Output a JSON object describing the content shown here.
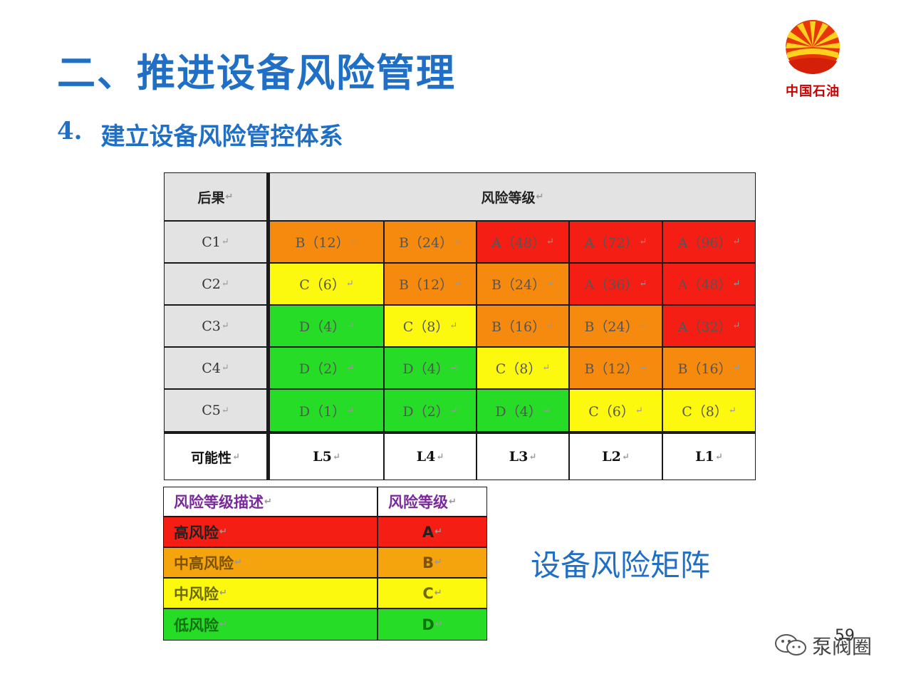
{
  "slide": {
    "title": "二、推进设备风险管理",
    "subtitle_number": "4.",
    "subtitle_text": "建立设备风险管控体系",
    "logo_text": "中国石油",
    "caption": "设备风险矩阵",
    "page_number": "59",
    "watermark": "泵阀圈"
  },
  "matrix": {
    "header_consequence": "后果",
    "header_risk": "风险等级",
    "footer_label": "可能性",
    "likelihood_levels": [
      "L5",
      "L4",
      "L3",
      "L2",
      "L1"
    ],
    "rows": [
      {
        "label": "C1",
        "cells": [
          {
            "text": "B（12）",
            "level": "B"
          },
          {
            "text": "B（24）",
            "level": "B"
          },
          {
            "text": "A（48）",
            "level": "A"
          },
          {
            "text": "A（72）",
            "level": "A"
          },
          {
            "text": "A（96）",
            "level": "A"
          }
        ]
      },
      {
        "label": "C2",
        "cells": [
          {
            "text": "C（6）",
            "level": "C"
          },
          {
            "text": "B（12）",
            "level": "B"
          },
          {
            "text": "B（24）",
            "level": "B"
          },
          {
            "text": "A（36）",
            "level": "A"
          },
          {
            "text": "A（48）",
            "level": "A"
          }
        ]
      },
      {
        "label": "C3",
        "cells": [
          {
            "text": "D（4）",
            "level": "D"
          },
          {
            "text": "C（8）",
            "level": "C"
          },
          {
            "text": "B（16）",
            "level": "B"
          },
          {
            "text": "B（24）",
            "level": "B"
          },
          {
            "text": "A（32）",
            "level": "A"
          }
        ]
      },
      {
        "label": "C4",
        "cells": [
          {
            "text": "D（2）",
            "level": "D"
          },
          {
            "text": "D（4）",
            "level": "D"
          },
          {
            "text": "C（8）",
            "level": "C"
          },
          {
            "text": "B（12）",
            "level": "B"
          },
          {
            "text": "B（16）",
            "level": "B"
          }
        ]
      },
      {
        "label": "C5",
        "cells": [
          {
            "text": "D（1）",
            "level": "D"
          },
          {
            "text": "D（2）",
            "level": "D"
          },
          {
            "text": "D（4）",
            "level": "D"
          },
          {
            "text": "C（6）",
            "level": "C"
          },
          {
            "text": "C（8）",
            "level": "C"
          }
        ]
      }
    ]
  },
  "legend": {
    "header_desc": "风险等级描述",
    "header_level": "风险等级",
    "rows": [
      {
        "desc": "高风险",
        "level": "A"
      },
      {
        "desc": "中高风险",
        "level": "B"
      },
      {
        "desc": "中风险",
        "level": "C"
      },
      {
        "desc": "低风险",
        "level": "D"
      }
    ]
  },
  "colors": {
    "title_blue": "#1f6fc6",
    "risk_A": "#f51e15",
    "risk_B": "#f58a0e",
    "risk_C": "#fcf80e",
    "risk_D": "#26dc26",
    "header_gray": "#e3e3e3"
  }
}
